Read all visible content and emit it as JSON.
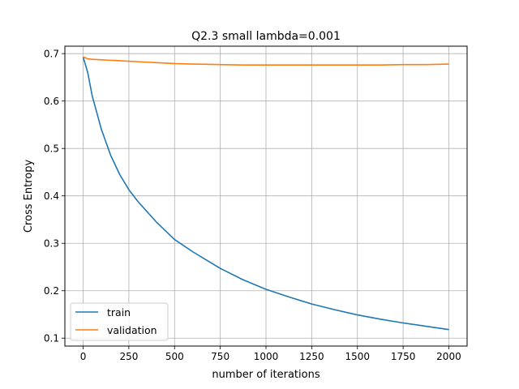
{
  "chart_data": {
    "type": "line",
    "title": "Q2.3 small lambda=0.001",
    "xlabel": "number of iterations",
    "ylabel": "Cross Entropy",
    "xlim": [
      -100,
      2100
    ],
    "ylim": [
      0.0833,
      0.7157
    ],
    "xticks": [
      0,
      250,
      500,
      750,
      1000,
      1250,
      1500,
      1750,
      2000
    ],
    "yticks": [
      0.1,
      0.2,
      0.3,
      0.4,
      0.5,
      0.6,
      0.7
    ],
    "xtick_labels": [
      "0",
      "250",
      "500",
      "750",
      "1000",
      "1250",
      "1500",
      "1750",
      "2000"
    ],
    "ytick_labels": [
      "0.1",
      "0.2",
      "0.3",
      "0.4",
      "0.5",
      "0.6",
      "0.7"
    ],
    "grid": true,
    "legend_position": "lower-left",
    "x": [
      0,
      25,
      50,
      100,
      150,
      200,
      250,
      300,
      400,
      500,
      600,
      750,
      875,
      1000,
      1125,
      1250,
      1375,
      1500,
      1625,
      1750,
      1875,
      2000
    ],
    "series": [
      {
        "name": "train",
        "color": "#1f77b4",
        "values": [
          0.693,
          0.66,
          0.61,
          0.54,
          0.486,
          0.445,
          0.413,
          0.388,
          0.345,
          0.308,
          0.282,
          0.247,
          0.223,
          0.203,
          0.187,
          0.172,
          0.16,
          0.149,
          0.14,
          0.132,
          0.125,
          0.118
        ]
      },
      {
        "name": "validation",
        "color": "#ff7f0e",
        "values": [
          0.693,
          0.689,
          0.688,
          0.687,
          0.686,
          0.685,
          0.684,
          0.683,
          0.681,
          0.679,
          0.678,
          0.677,
          0.676,
          0.676,
          0.676,
          0.676,
          0.676,
          0.676,
          0.676,
          0.677,
          0.677,
          0.678
        ]
      }
    ]
  }
}
